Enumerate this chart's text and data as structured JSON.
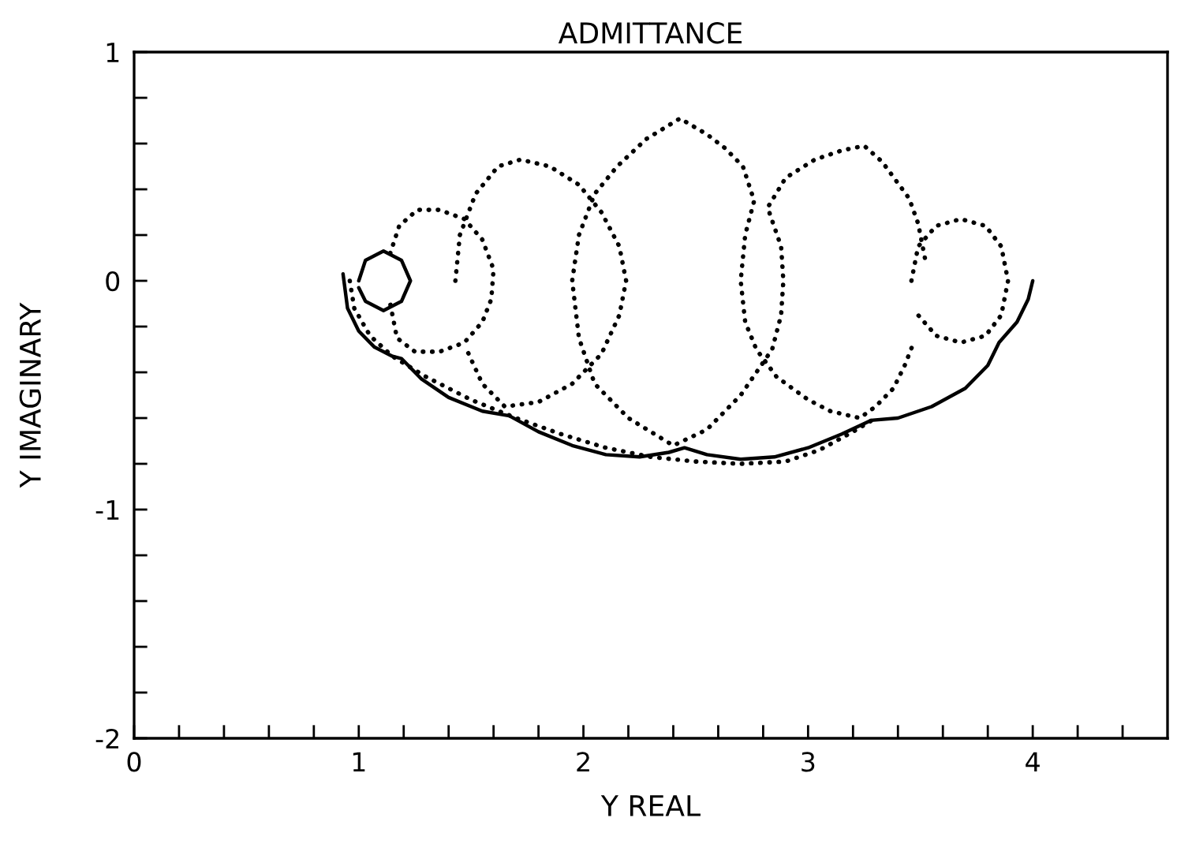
{
  "chart_data": {
    "type": "line",
    "title": "ADMITTANCE",
    "xlabel": "Y REAL",
    "ylabel": "Y IMAGINARY",
    "xlim": [
      0,
      4.6
    ],
    "ylim": [
      -2,
      1
    ],
    "xticks": [
      0,
      {
        "value": 0.2,
        "label": null
      },
      {
        "value": 0.4,
        "label": null
      },
      {
        "value": 0.6,
        "label": null
      },
      {
        "value": 0.8,
        "label": null
      },
      1,
      {
        "value": 1.2,
        "label": null
      },
      {
        "value": 1.4,
        "label": null
      },
      {
        "value": 1.6,
        "label": null
      },
      {
        "value": 1.8,
        "label": null
      },
      2,
      {
        "value": 2.2,
        "label": null
      },
      {
        "value": 2.4,
        "label": null
      },
      {
        "value": 2.6,
        "label": null
      },
      {
        "value": 2.8,
        "label": null
      },
      3,
      {
        "value": 3.2,
        "label": null
      },
      {
        "value": 3.4,
        "label": null
      },
      {
        "value": 3.6,
        "label": null
      },
      {
        "value": 3.8,
        "label": null
      },
      4,
      {
        "value": 4.2,
        "label": null
      },
      {
        "value": 4.4,
        "label": null
      }
    ],
    "yticks": [
      -2,
      {
        "value": -1.8,
        "label": null
      },
      {
        "value": -1.6,
        "label": null
      },
      {
        "value": -1.4,
        "label": null
      },
      {
        "value": -1.2,
        "label": null
      },
      -1,
      {
        "value": -0.8,
        "label": null
      },
      {
        "value": -0.6,
        "label": null
      },
      {
        "value": -0.4,
        "label": null
      },
      {
        "value": -0.2,
        "label": null
      },
      0,
      {
        "value": 0.2,
        "label": null
      },
      {
        "value": 0.4,
        "label": null
      },
      {
        "value": 0.6,
        "label": null
      },
      {
        "value": 0.8,
        "label": null
      },
      1
    ],
    "series": [
      {
        "color": "#000000",
        "line_style": "solid",
        "x": [
          0.93,
          0.95,
          1.0,
          1.07,
          1.15,
          1.19,
          1.28,
          1.4,
          1.55,
          1.67,
          1.8,
          1.95,
          2.1,
          2.25,
          2.38,
          2.45,
          2.55,
          2.7,
          2.85,
          3.0,
          3.15,
          3.28,
          3.4,
          3.55,
          3.7,
          3.8,
          3.85,
          3.93,
          3.98,
          4.0
        ],
        "values": [
          0.03,
          -0.12,
          -0.22,
          -0.29,
          -0.33,
          -0.34,
          -0.43,
          -0.51,
          -0.57,
          -0.59,
          -0.66,
          -0.72,
          -0.76,
          -0.77,
          -0.75,
          -0.73,
          -0.76,
          -0.78,
          -0.77,
          -0.73,
          -0.67,
          -0.61,
          -0.6,
          -0.55,
          -0.47,
          -0.37,
          -0.27,
          -0.18,
          -0.08,
          0.0
        ]
      },
      {
        "color": "#000000",
        "line_style": "solid",
        "x": [
          1.0,
          1.03,
          1.11,
          1.19,
          1.23,
          1.19,
          1.11,
          1.03,
          1.0
        ],
        "values": [
          0.0,
          0.09,
          0.13,
          0.09,
          0.0,
          -0.09,
          -0.13,
          -0.09,
          -0.03
        ]
      },
      {
        "color": "#000000",
        "line_style": "dotted",
        "x": [
          0.96,
          0.98,
          1.05,
          1.15,
          1.3,
          1.5,
          1.7,
          1.9,
          2.1,
          2.3,
          2.5,
          2.7,
          2.9,
          3.05,
          3.2,
          3.3
        ],
        "values": [
          0.0,
          -0.12,
          -0.24,
          -0.33,
          -0.42,
          -0.52,
          -0.6,
          -0.67,
          -0.73,
          -0.77,
          -0.79,
          -0.8,
          -0.79,
          -0.74,
          -0.66,
          -0.6
        ]
      },
      {
        "color": "#000000",
        "line_style": "dotted",
        "x": [
          1.14,
          1.18,
          1.26,
          1.36,
          1.47,
          1.55,
          1.6,
          1.59,
          1.55,
          1.47,
          1.36,
          1.25,
          1.17,
          1.14
        ],
        "values": [
          0.12,
          0.24,
          0.31,
          0.31,
          0.27,
          0.18,
          0.05,
          -0.08,
          -0.18,
          -0.27,
          -0.31,
          -0.31,
          -0.25,
          -0.1
        ]
      },
      {
        "color": "#000000",
        "line_style": "dotted",
        "x": [
          1.43,
          1.45,
          1.52,
          1.62,
          1.72,
          1.85,
          1.98,
          2.08,
          2.16,
          2.19,
          2.16,
          2.08,
          1.95,
          1.8,
          1.65,
          1.55,
          1.48
        ],
        "values": [
          0.0,
          0.2,
          0.38,
          0.5,
          0.53,
          0.5,
          0.42,
          0.3,
          0.15,
          0.0,
          -0.15,
          -0.32,
          -0.45,
          -0.53,
          -0.55,
          -0.45,
          -0.3
        ]
      },
      {
        "color": "#000000",
        "line_style": "dotted",
        "x": [
          3.52,
          3.49,
          3.45,
          3.39,
          3.33,
          3.25,
          3.15,
          3.03,
          2.9,
          2.82,
          2.88,
          2.89,
          2.88,
          2.84,
          2.7,
          2.55,
          2.4,
          2.2,
          2.05,
          1.98,
          1.95,
          1.98,
          2.05,
          2.15,
          2.28,
          2.43,
          2.55,
          2.63,
          2.71,
          2.76,
          2.72,
          2.7,
          2.72,
          2.77,
          2.86,
          3.0,
          3.1,
          3.23,
          3.3,
          3.38,
          3.43,
          3.47
        ],
        "values": [
          0.1,
          0.25,
          0.36,
          0.44,
          0.52,
          0.59,
          0.57,
          0.53,
          0.45,
          0.32,
          0.15,
          0.0,
          -0.15,
          -0.3,
          -0.5,
          -0.65,
          -0.72,
          -0.6,
          -0.45,
          -0.25,
          0.0,
          0.2,
          0.38,
          0.5,
          0.62,
          0.71,
          0.64,
          0.58,
          0.5,
          0.35,
          0.2,
          0.0,
          -0.18,
          -0.3,
          -0.42,
          -0.52,
          -0.57,
          -0.6,
          -0.55,
          -0.47,
          -0.37,
          -0.27
        ]
      },
      {
        "color": "#000000",
        "line_style": "dotted",
        "x": [
          3.46,
          3.49,
          3.57,
          3.68,
          3.79,
          3.86,
          3.89,
          3.86,
          3.79,
          3.68,
          3.57,
          3.49
        ],
        "values": [
          0.0,
          0.15,
          0.24,
          0.27,
          0.24,
          0.15,
          0.0,
          -0.15,
          -0.24,
          -0.27,
          -0.24,
          -0.15
        ]
      }
    ]
  }
}
